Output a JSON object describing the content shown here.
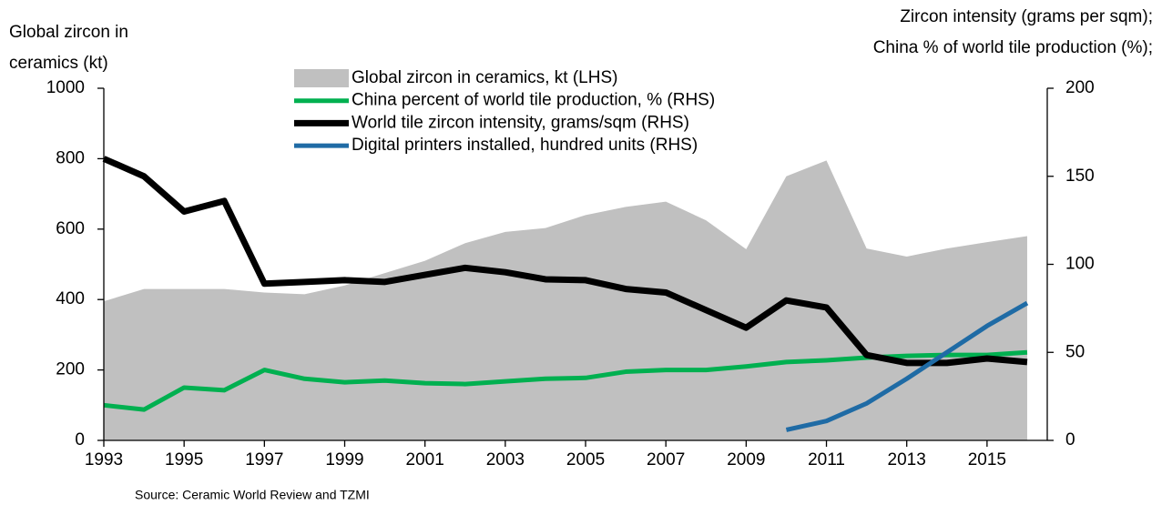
{
  "chart_data": {
    "type": "line",
    "ylabel": [
      "Global zircon in",
      "ceramics (kt)"
    ],
    "y2label": [
      "Zircon intensity (grams per sqm);",
      "China % of world tile production (%);"
    ],
    "source": "Source: Ceramic World Review and TZMI",
    "x": [
      1993,
      1994,
      1995,
      1996,
      1997,
      1998,
      1999,
      2000,
      2001,
      2002,
      2003,
      2004,
      2005,
      2006,
      2007,
      2008,
      2009,
      2010,
      2011,
      2012,
      2013,
      2014,
      2015,
      2016
    ],
    "xlim": [
      1993,
      2016.5
    ],
    "xticks": [
      1993,
      1995,
      1997,
      1999,
      2001,
      2003,
      2005,
      2007,
      2009,
      2011,
      2013,
      2015
    ],
    "ylim": [
      0,
      1000
    ],
    "yticks": [
      0,
      200,
      400,
      600,
      800,
      1000
    ],
    "y2lim": [
      0,
      200
    ],
    "y2ticks": [
      0,
      50,
      100,
      150,
      200
    ],
    "series": [
      {
        "name": "Global zircon in ceramics, kt (LHS)",
        "type": "area",
        "color": "#c0c0c0",
        "values": [
          395,
          430,
          430,
          430,
          420,
          415,
          440,
          475,
          510,
          560,
          592,
          603,
          640,
          663,
          678,
          625,
          543,
          750,
          795,
          545,
          522,
          545,
          563,
          580
        ]
      },
      {
        "name": "China percent of world tile production, % (RHS)",
        "type": "line",
        "axis": "y2",
        "color": "#00b050",
        "values": [
          20,
          17.5,
          30,
          28.5,
          40,
          35,
          33,
          34,
          32.5,
          32,
          33.5,
          35,
          35.5,
          39,
          40,
          40,
          42,
          44.5,
          45.5,
          47,
          48,
          48.5,
          48.5,
          50
        ]
      },
      {
        "name": "World tile zircon intensity, grams/sqm (RHS)",
        "type": "line",
        "axis": "y2",
        "color": "#000000",
        "values": [
          160,
          150,
          130,
          136,
          89,
          90,
          91,
          90,
          94,
          98,
          95.5,
          91.5,
          91,
          86,
          84,
          74,
          64,
          79.5,
          75.5,
          48.5,
          44,
          44,
          46.5,
          44.5
        ]
      },
      {
        "name": "Digital printers installed, hundred units (RHS)",
        "type": "line",
        "axis": "y2",
        "color": "#1f6ba5",
        "values": [
          null,
          null,
          null,
          null,
          null,
          null,
          null,
          null,
          null,
          null,
          null,
          null,
          null,
          null,
          null,
          null,
          null,
          6,
          11,
          21,
          35,
          50,
          65,
          78
        ]
      }
    ]
  }
}
